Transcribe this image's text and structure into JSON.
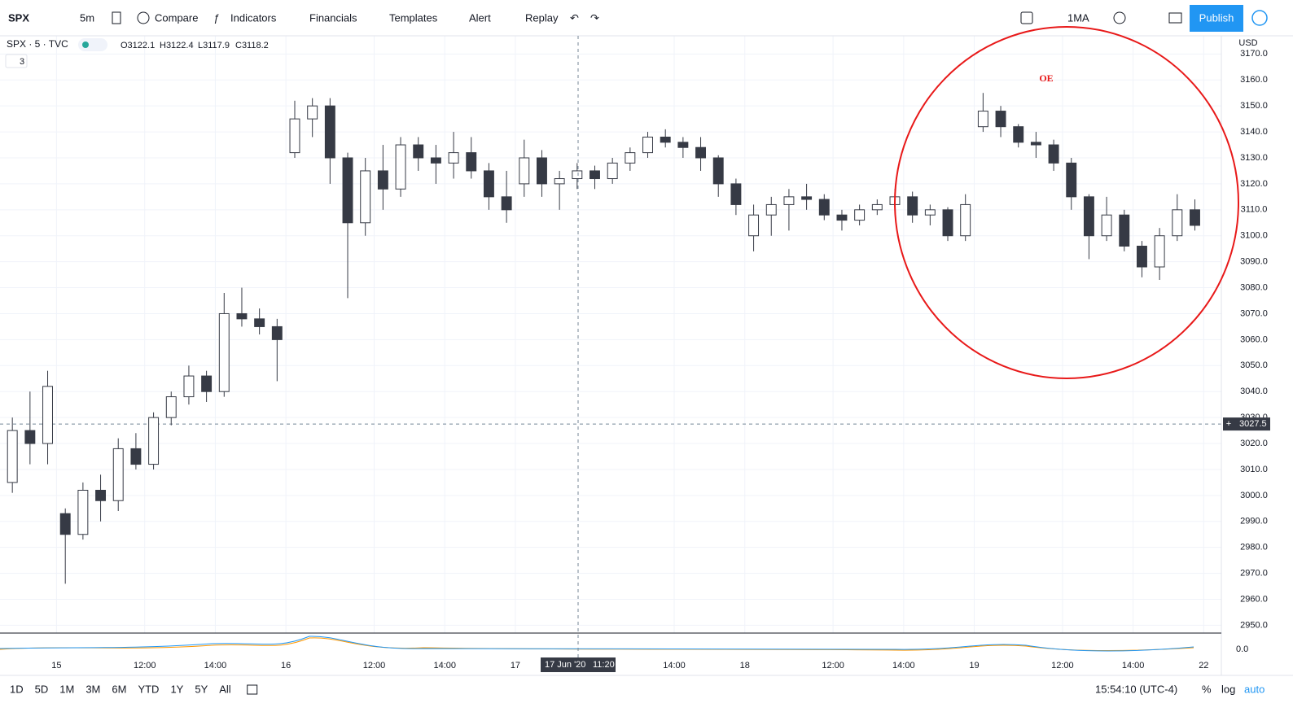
{
  "toolbar": {
    "symbol": "SPX",
    "interval": "5m",
    "compare": "Compare",
    "indicators": "Indicators",
    "financials": "Financials",
    "templates": "Templates",
    "alert": "Alert",
    "replay": "Replay",
    "layout": "1MA",
    "publish": "Publish"
  },
  "legend": {
    "symbol": "SPX · 5 · TVC",
    "open": "O3122.1",
    "high": "H3122.4",
    "low": "L3117.9",
    "close": "C3118.2",
    "studies": "3"
  },
  "currency": "USD",
  "annotation": "OE",
  "crosshair": {
    "date": "17 Jun '20",
    "time": "11:20",
    "price": {
      "value": 3027.5,
      "label": "3027.5"
    }
  },
  "indicator": {
    "zero": "0.0"
  },
  "chart_data": {
    "type": "candlestick",
    "x": [
      -1.25,
      -0.75,
      -0.25,
      0.25,
      0.75,
      1.25,
      1.75,
      2.25,
      2.75,
      3.25,
      3.75,
      4.25,
      4.75,
      5.25,
      5.75,
      6.25,
      6.75,
      7.25,
      7.75,
      8.25,
      8.75,
      9.25,
      9.75,
      10.25,
      10.75,
      11.25,
      11.75,
      12.25,
      12.75,
      13.25,
      13.75,
      14.25,
      14.75,
      15.25,
      15.75,
      16.25,
      16.75,
      17.25,
      17.75,
      18.25,
      18.75,
      19.25,
      19.75,
      20.25,
      20.75,
      21.25,
      21.75,
      22.25,
      22.75,
      23.25,
      23.75,
      24.25,
      24.75,
      25.25,
      25.75,
      26.25,
      26.75,
      27.25,
      27.75,
      28.25,
      28.75,
      29.25,
      29.75,
      30.25,
      30.75,
      31.25,
      31.75,
      32.25
    ],
    "open": [
      3005,
      3025,
      3020,
      2993,
      2985,
      3002,
      2998,
      3018,
      3012,
      3030,
      3038,
      3046,
      3040,
      3070,
      3068,
      3065,
      3132,
      3145,
      3150,
      3130,
      3105,
      3125,
      3118,
      3135,
      3130,
      3128,
      3132,
      3125,
      3115,
      3120,
      3130,
      3120,
      3122,
      3125,
      3122,
      3128,
      3132,
      3138,
      3136,
      3134,
      3130,
      3120,
      3100,
      3108,
      3112,
      3115,
      3114,
      3108,
      3106,
      3110,
      3112,
      3115,
      3108,
      3110,
      3100,
      3142,
      3148,
      3142,
      3136,
      3135,
      3128,
      3115,
      3100,
      3108,
      3096,
      3088,
      3100,
      3110
    ],
    "high": [
      3030,
      3040,
      3048,
      2995,
      3005,
      3008,
      3022,
      3024,
      3032,
      3040,
      3050,
      3048,
      3078,
      3080,
      3072,
      3068,
      3152,
      3153,
      3153,
      3132,
      3130,
      3135,
      3138,
      3138,
      3135,
      3140,
      3138,
      3128,
      3125,
      3137,
      3133,
      3125,
      3128,
      3127,
      3130,
      3134,
      3140,
      3141,
      3138,
      3138,
      3131,
      3122,
      3112,
      3115,
      3118,
      3120,
      3116,
      3110,
      3112,
      3114,
      3118,
      3117,
      3112,
      3111,
      3116,
      3155,
      3150,
      3143,
      3140,
      3137,
      3130,
      3116,
      3115,
      3110,
      3098,
      3103,
      3116,
      3114
    ],
    "low": [
      3001,
      3012,
      3012,
      2966,
      2983,
      2990,
      2994,
      3010,
      3010,
      3027,
      3035,
      3036,
      3038,
      3065,
      3062,
      3044,
      3130,
      3138,
      3120,
      3076,
      3100,
      3110,
      3115,
      3125,
      3120,
      3122,
      3122,
      3110,
      3105,
      3115,
      3115,
      3110,
      3118,
      3118,
      3120,
      3125,
      3130,
      3134,
      3130,
      3125,
      3115,
      3108,
      3094,
      3100,
      3102,
      3110,
      3106,
      3102,
      3104,
      3108,
      3110,
      3105,
      3104,
      3098,
      3098,
      3140,
      3138,
      3134,
      3130,
      3125,
      3110,
      3091,
      3098,
      3094,
      3084,
      3083,
      3098,
      3102
    ],
    "close": [
      3025,
      3020,
      3042,
      2985,
      3002,
      2998,
      3018,
      3012,
      3030,
      3038,
      3046,
      3040,
      3070,
      3068,
      3065,
      3060,
      3145,
      3150,
      3130,
      3105,
      3125,
      3118,
      3135,
      3130,
      3128,
      3132,
      3125,
      3115,
      3110,
      3130,
      3120,
      3122,
      3125,
      3122,
      3128,
      3132,
      3138,
      3136,
      3134,
      3130,
      3120,
      3112,
      3108,
      3112,
      3115,
      3114,
      3108,
      3106,
      3110,
      3112,
      3115,
      3108,
      3110,
      3100,
      3112,
      3148,
      3142,
      3136,
      3135,
      3128,
      3115,
      3100,
      3108,
      3096,
      3088,
      3100,
      3110,
      3104
    ],
    "up_color": "#ffffff",
    "down_color": "#363a45",
    "wick_color": "#363a45",
    "xlim": [
      -1.6,
      33
    ],
    "xticks": [
      {
        "value": 0,
        "label": "15"
      },
      {
        "value": 2.5,
        "label": "12:00"
      },
      {
        "value": 4.5,
        "label": "14:00"
      },
      {
        "value": 6.5,
        "label": "16"
      },
      {
        "value": 9,
        "label": "12:00"
      },
      {
        "value": 11,
        "label": "14:00"
      },
      {
        "value": 13,
        "label": "17"
      },
      {
        "value": 17.5,
        "label": "14:00"
      },
      {
        "value": 19.5,
        "label": "18"
      },
      {
        "value": 22,
        "label": "12:00"
      },
      {
        "value": 24,
        "label": "14:00"
      },
      {
        "value": 26,
        "label": "19"
      },
      {
        "value": 28.5,
        "label": "12:00"
      },
      {
        "value": 30.5,
        "label": "14:00"
      },
      {
        "value": 32.5,
        "label": "22"
      }
    ],
    "ylim": [
      2947,
      3177
    ],
    "yticks": [
      {
        "value": 2950,
        "label": "2950.0"
      },
      {
        "value": 2960,
        "label": "2960.0"
      },
      {
        "value": 2970,
        "label": "2970.0"
      },
      {
        "value": 2980,
        "label": "2980.0"
      },
      {
        "value": 2990,
        "label": "2990.0"
      },
      {
        "value": 3000,
        "label": "3000.0"
      },
      {
        "value": 3010,
        "label": "3010.0"
      },
      {
        "value": 3020,
        "label": "3020.0"
      },
      {
        "value": 3030,
        "label": "3030.0"
      },
      {
        "value": 3040,
        "label": "3040.0"
      },
      {
        "value": 3050,
        "label": "3050.0"
      },
      {
        "value": 3060,
        "label": "3060.0"
      },
      {
        "value": 3070,
        "label": "3070.0"
      },
      {
        "value": 3080,
        "label": "3080.0"
      },
      {
        "value": 3090,
        "label": "3090.0"
      },
      {
        "value": 3100,
        "label": "3100.0"
      },
      {
        "value": 3110,
        "label": "3110.0"
      },
      {
        "value": 3120,
        "label": "3120.0"
      },
      {
        "value": 3130,
        "label": "3130.0"
      },
      {
        "value": 3140,
        "label": "3140.0"
      },
      {
        "value": 3150,
        "label": "3150.0"
      },
      {
        "value": 3160,
        "label": "3160.0"
      },
      {
        "value": 3170,
        "label": "3170.0"
      }
    ],
    "grid": true
  },
  "bottom_bar": {
    "ranges": [
      "1D",
      "5D",
      "1M",
      "3M",
      "6M",
      "YTD",
      "1Y",
      "5Y",
      "All"
    ],
    "clock": "15:54:10 (UTC-4)",
    "percent": "%",
    "log": "log",
    "auto": "auto"
  }
}
